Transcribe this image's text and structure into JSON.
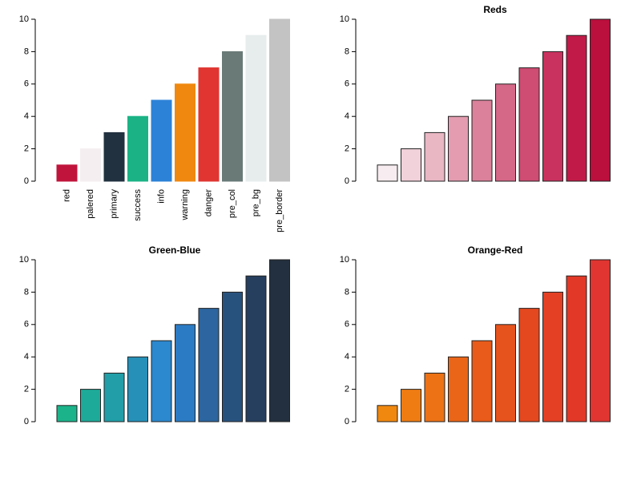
{
  "chart_data": [
    {
      "type": "bar",
      "categories": [
        "red",
        "palered",
        "primary",
        "success",
        "info",
        "warning",
        "danger",
        "pre_col",
        "pre_bg",
        "pre_border"
      ],
      "values": [
        1,
        2,
        3,
        4,
        5,
        6,
        7,
        8,
        9,
        10
      ],
      "colors": [
        "#c0143c",
        "#f5eef0",
        "#22313f",
        "#1bb385",
        "#2c82d7",
        "#f0880f",
        "#e03531",
        "#697a77",
        "#e7ecec",
        "#c3c3c3"
      ],
      "ylim": [
        0,
        10
      ],
      "yticks": [
        0,
        2,
        4,
        6,
        8,
        10
      ]
    },
    {
      "type": "bar",
      "title": "Reds",
      "values": [
        1,
        2,
        3,
        4,
        5,
        6,
        7,
        8,
        9,
        10
      ],
      "colors": [
        "#f7ecef",
        "#f1d1da",
        "#e9b7c4",
        "#e39cb0",
        "#dc819b",
        "#d56787",
        "#cf4c72",
        "#c9325e",
        "#c11a48",
        "#bb0f3d"
      ],
      "border": "#222222",
      "ylim": [
        0,
        10
      ],
      "yticks": [
        0,
        2,
        4,
        6,
        8,
        10
      ]
    },
    {
      "type": "bar",
      "title": "Green-Blue",
      "values": [
        1,
        2,
        3,
        4,
        5,
        6,
        7,
        8,
        9,
        10
      ],
      "colors": [
        "#1bb38a",
        "#1eaa98",
        "#219ea8",
        "#2690b8",
        "#2c88cf",
        "#2b7bc4",
        "#2c659f",
        "#28527e",
        "#263f5f",
        "#22303f"
      ],
      "border": "#222222",
      "ylim": [
        0,
        10
      ],
      "yticks": [
        0,
        2,
        4,
        6,
        8,
        10
      ]
    },
    {
      "type": "bar",
      "title": "Orange-Red",
      "values": [
        1,
        2,
        3,
        4,
        5,
        6,
        7,
        8,
        9,
        10
      ],
      "colors": [
        "#f0880f",
        "#ee7c13",
        "#ec7215",
        "#ea6518",
        "#e85b1a",
        "#e6531d",
        "#e4481f",
        "#e34024",
        "#e23827",
        "#e03531"
      ],
      "border": "#222222",
      "ylim": [
        0,
        10
      ],
      "yticks": [
        0,
        2,
        4,
        6,
        8,
        10
      ]
    }
  ]
}
